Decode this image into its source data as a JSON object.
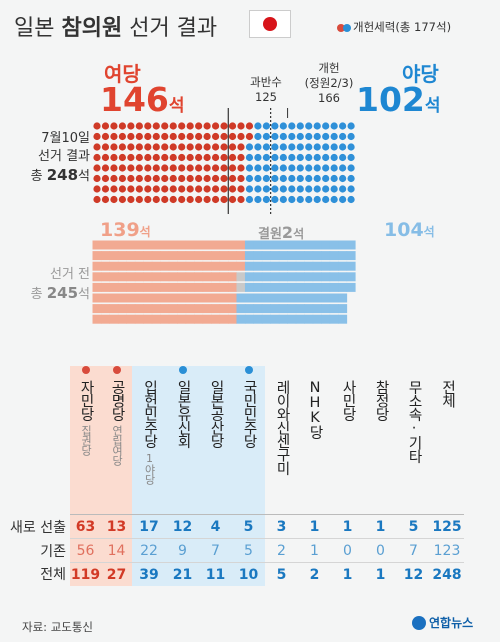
{
  "title": {
    "pre": "일본 ",
    "bold": "참의원",
    "post": " 선거 결과"
  },
  "legend": "개헌세력(총 177석)",
  "result": {
    "left_label": "여당",
    "left_seats": "146",
    "seat_unit": "석",
    "right_label": "야당",
    "right_seats": "102",
    "majority_label": "과반수",
    "majority_value": "125",
    "supermajority_label1": "개헌",
    "supermajority_label2": "(정원2/3)",
    "supermajority_value": "166",
    "side_label_1": "7월10일",
    "side_label_2": "선거 결과",
    "side_label_3_pre": "총 ",
    "side_label_3_num": "248",
    "side_label_3_post": "석"
  },
  "before": {
    "left_seats": "139",
    "right_seats": "104",
    "seat_unit": "석",
    "vacant_label": "결원",
    "vacant_value": "2",
    "vacant_unit": "석",
    "side_label_1": "선거 전",
    "side_label_2_pre": "총 ",
    "side_label_2_num": "245",
    "side_label_2_post": "석"
  },
  "colors": {
    "ruling": "#cf3a27",
    "ruling_light": "#f2aa92",
    "opposition": "#2f90d8",
    "opposition_light": "#89c0e8",
    "vacant": "#c9c9c9",
    "dot_red": "#d84b3c",
    "dot_blue": "#2a8fd6"
  },
  "chart_data": {
    "type": "table",
    "waffle_after": {
      "total": 248,
      "ruling": 146,
      "opposition": 102,
      "majority": 125,
      "constitution_line": 166,
      "constitution_bloc": 177
    },
    "waffle_before": {
      "total": 245,
      "ruling": 139,
      "vacant": 2,
      "opposition": 104
    },
    "row_labels": [
      "새로 선출",
      "기존",
      "전체"
    ],
    "parties": [
      {
        "name": "자민당",
        "sub": "집권당",
        "dot": "red",
        "group": "ruling",
        "new": 63,
        "old": 56,
        "total": 119
      },
      {
        "name": "공명당",
        "sub": "연립여당",
        "dot": "red",
        "group": "ruling",
        "new": 13,
        "old": 14,
        "total": 27
      },
      {
        "name": "입헌민주당",
        "sub": "1야당",
        "dot": "",
        "group": "opp",
        "new": 17,
        "old": 22,
        "total": 39
      },
      {
        "name": "일본유신회",
        "sub": "",
        "dot": "blue",
        "group": "opp",
        "new": 12,
        "old": 9,
        "total": 21
      },
      {
        "name": "일본공산당",
        "sub": "",
        "dot": "",
        "group": "opp",
        "new": 4,
        "old": 7,
        "total": 11
      },
      {
        "name": "국민민주당",
        "sub": "",
        "dot": "blue",
        "group": "opp",
        "new": 5,
        "old": 5,
        "total": 10
      },
      {
        "name": "레이와신센구미",
        "sub": "",
        "dot": "",
        "group": "other",
        "new": 3,
        "old": 2,
        "total": 5
      },
      {
        "name": "NHK당",
        "sub": "",
        "dot": "",
        "group": "other",
        "new": 1,
        "old": 1,
        "total": 2
      },
      {
        "name": "사민당",
        "sub": "",
        "dot": "",
        "group": "other",
        "new": 1,
        "old": 0,
        "total": 1
      },
      {
        "name": "참정당",
        "sub": "",
        "dot": "",
        "group": "other",
        "new": 1,
        "old": 0,
        "total": 1
      },
      {
        "name": "무소속·기타",
        "sub": "",
        "dot": "",
        "group": "other",
        "new": 5,
        "old": 7,
        "total": 12
      },
      {
        "name": "전체",
        "sub": "",
        "dot": "",
        "group": "total",
        "new": 125,
        "old": 123,
        "total": 248
      }
    ]
  },
  "source": "자료: 교도통신",
  "logo": "연합뉴스"
}
